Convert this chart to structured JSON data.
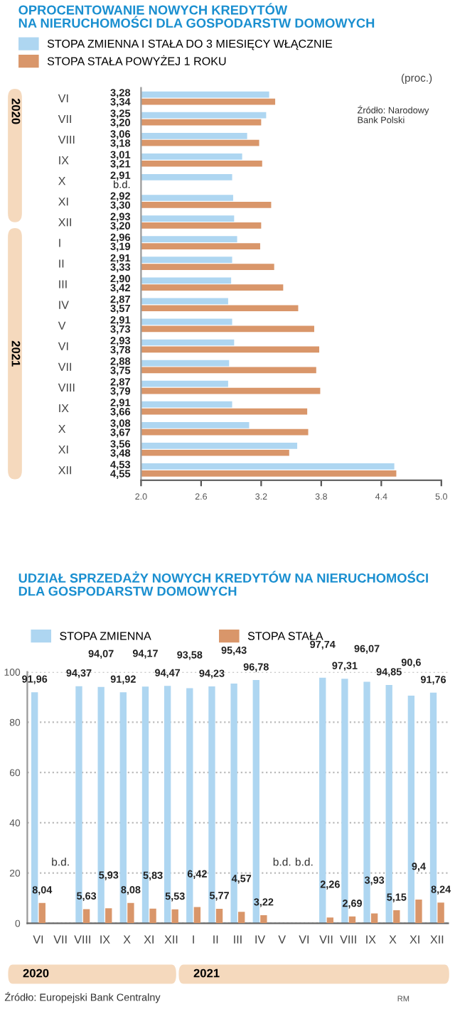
{
  "chart_data": [
    {
      "type": "bar",
      "orientation": "horizontal",
      "title": "OPROCENTOWANIE NOWYCH KREDYTÓW\nNA NIERUCHOMOŚCI DLA GOSPODARSTW DOMOWYCH",
      "categories": [
        "VI",
        "VII",
        "VIII",
        "IX",
        "X",
        "XI",
        "XII",
        "I",
        "II",
        "III",
        "IV",
        "V",
        "VI",
        "VII",
        "VIII",
        "IX",
        "X",
        "XI",
        "XII"
      ],
      "series": [
        {
          "name": "STOPA ZMIENNA I STAŁA DO 3 MIESIĘCY WŁĄCZNIE",
          "color": "#aed6f1",
          "values": [
            3.28,
            3.25,
            3.06,
            3.01,
            2.91,
            2.92,
            2.93,
            2.96,
            2.91,
            2.9,
            2.87,
            2.91,
            2.93,
            2.88,
            2.87,
            2.91,
            3.08,
            3.56,
            4.53
          ],
          "value_labels": [
            "3,28",
            "3,25",
            "3,06",
            "3,01",
            "2,91",
            "2,92",
            "2,93",
            "2,96",
            "2,91",
            "2,90",
            "2,87",
            "2,91",
            "2,93",
            "2,88",
            "2,87",
            "2,91",
            "3,08",
            "3,56",
            "4,53"
          ]
        },
        {
          "name": "STOPA STAŁA POWYŻEJ 1 ROKU",
          "color": "#d9966a",
          "values": [
            3.34,
            3.2,
            3.18,
            3.21,
            null,
            3.3,
            3.2,
            3.19,
            3.33,
            3.42,
            3.57,
            3.73,
            3.78,
            3.75,
            3.79,
            3.66,
            3.67,
            3.48,
            4.55
          ],
          "value_labels": [
            "3,34",
            "3,20",
            "3,18",
            "3,21",
            "b.d.",
            "3,30",
            "3,20",
            "3,19",
            "3,33",
            "3,42",
            "3,57",
            "3,73",
            "3,78",
            "3,75",
            "3,79",
            "3,66",
            "3,67",
            "3,48",
            "4,55"
          ]
        }
      ],
      "xlim": [
        2.0,
        5.0
      ],
      "xticks": [
        {
          "value": 2.0,
          "label": "2.0"
        },
        {
          "value": 2.6,
          "label": "2.6"
        },
        {
          "value": 3.2,
          "label": "3.2"
        },
        {
          "value": 3.8,
          "label": "3.8"
        },
        {
          "value": 4.4,
          "label": "4.4"
        },
        {
          "value": 5.0,
          "label": "5.0"
        }
      ],
      "legend": "top",
      "annotations": [
        "2020",
        "2021",
        "(proc.)",
        "Źródło: Narodowy\nBank Polski"
      ]
    },
    {
      "type": "bar",
      "title": "UDZIAŁ SPRZEDAŻY NOWYCH KREDYTÓW NA NIERUCHOMOŚCI\nDLA GOSPODARSTW DOMOWYCH",
      "categories": [
        "VI",
        "VII",
        "VIII",
        "IX",
        "X",
        "XI",
        "XII",
        "I",
        "II",
        "III",
        "IV",
        "V",
        "VI",
        "VII",
        "VIII",
        "IX",
        "X",
        "XI",
        "XII"
      ],
      "series": [
        {
          "name": "STOPA ZMIENNA",
          "color": "#aed6f1",
          "values": [
            91.96,
            null,
            94.37,
            94.07,
            91.92,
            94.17,
            94.47,
            93.58,
            94.23,
            95.43,
            96.78,
            null,
            null,
            97.74,
            97.31,
            96.07,
            94.85,
            90.6,
            91.76
          ],
          "value_labels": [
            "91,96",
            null,
            "94,37",
            "94,07",
            "91,92",
            "94,17",
            "94,47",
            "93,58",
            "94,23",
            "95,43",
            "96,78",
            null,
            null,
            "97,74",
            "97,31",
            "96,07",
            "94,85",
            "90,6",
            "91,76"
          ]
        },
        {
          "name": "STOPA STAŁA",
          "color": "#d9966a",
          "values": [
            8.04,
            null,
            5.63,
            5.93,
            8.08,
            5.83,
            5.53,
            6.42,
            5.77,
            4.57,
            3.22,
            null,
            null,
            2.26,
            2.69,
            3.93,
            5.15,
            9.4,
            8.24
          ],
          "value_labels": [
            "8,04",
            "b.d.",
            "5,63",
            "5,93",
            "8,08",
            "5,83",
            "5,53",
            "6,42",
            "5,77",
            "4,57",
            "3,22",
            "b.d.",
            "b.d.",
            "2,26",
            "2,69",
            "3,93",
            "5,15",
            "9,4",
            "8,24"
          ]
        }
      ],
      "ylim": [
        0,
        100
      ],
      "yticks": [
        0,
        20,
        40,
        60,
        80,
        100
      ],
      "grid": "y",
      "legend": "top",
      "annotations": [
        "2020",
        "2021",
        "Źródło: Europejski Bank Centralny",
        "RM"
      ]
    }
  ]
}
